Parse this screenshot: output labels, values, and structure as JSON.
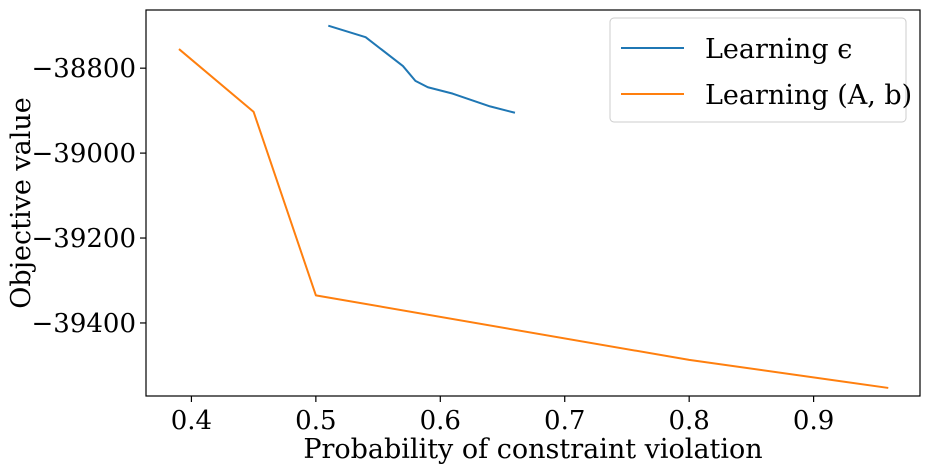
{
  "chart_data": {
    "type": "line",
    "title": "",
    "xlabel": "Probability of constraint violation",
    "ylabel": "Objective value",
    "xlim": [
      0.3635,
      0.9855
    ],
    "ylim": [
      -39572,
      -38663
    ],
    "xticks": [
      0.4,
      0.5,
      0.6,
      0.7,
      0.8,
      0.9
    ],
    "xtick_labels": [
      "0.4",
      "0.5",
      "0.6",
      "0.7",
      "0.8",
      "0.9"
    ],
    "yticks": [
      -38800,
      -39000,
      -39200,
      -39400
    ],
    "ytick_labels": [
      "−38800",
      "−39000",
      "−39200",
      "−39400"
    ],
    "grid": false,
    "legend_position": "top-right",
    "series": [
      {
        "name": "Learning ϵ",
        "color": "#1f77b4",
        "x": [
          0.51,
          0.54,
          0.57,
          0.58,
          0.59,
          0.61,
          0.64,
          0.66
        ],
        "y": [
          -38700,
          -38727,
          -38795,
          -38830,
          -38845,
          -38860,
          -38890,
          -38905
        ]
      },
      {
        "name": "Learning (A, b)",
        "color": "#ff7f0e",
        "x": [
          0.39,
          0.45,
          0.5,
          0.8,
          0.96
        ],
        "y": [
          -38755,
          -38903,
          -39335,
          -39487,
          -39553
        ]
      }
    ]
  }
}
